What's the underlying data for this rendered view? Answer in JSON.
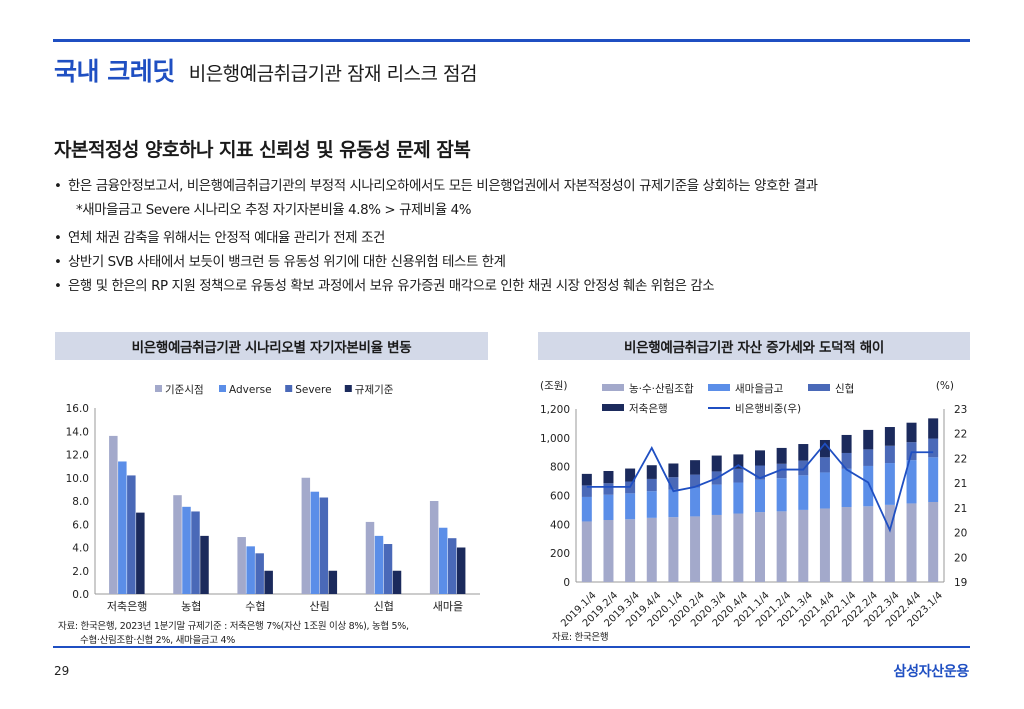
{
  "header": {
    "section": "국내 크레딧",
    "title": "비은행예금취급기관 잠재 리스크 점검"
  },
  "subtitle": "자본적정성 양호하나 지표 신뢰성 및 유동성 문제 잠복",
  "bullets": {
    "b1": "한은 금융안정보고서, 비은행예금취급기관의 부정적 시나리오하에서도 모든 비은행업권에서 자본적정성이 규제기준을 상회하는 양호한 결과",
    "b1_sub": "*새마을금고 Severe 시나리오 추정 자기자본비율 4.8% > 규제비율 4%",
    "b2": "연체 채권 감축을 위해서는 안정적 예대율 관리가 전제 조건",
    "b3": "상반기 SVB 사태에서 보듯이 뱅크런 등 유동성 위기에 대한 신용위험 테스트 한계",
    "b4": "은행 및 한은의 RP 지원 정책으로 유동성 확보 과정에서 보유 유가증권 매각으로 인한 채권 시장 안정성 훼손 위험은 감소",
    "bullet_char": "•"
  },
  "left_panel": {
    "title": "비은행예금취급기관 시나리오별 자기자본비율 변동",
    "source_line1": "자료: 한국은행, 2023년 1분기말 규제기준 : 저축은행 7%(자산 1조원 이상 8%), 농협 5%,",
    "source_line2": "수협·산림조합·신협 2%, 새마을금고 4%"
  },
  "right_panel": {
    "title": "비은행예금취급기관 자산 증가세와 도덕적 해이",
    "source": "자료: 한국은행"
  },
  "footer": {
    "page": "29",
    "brand": "삼성자산운용"
  },
  "chart_data": [
    {
      "type": "bar",
      "categories": [
        "저축은행",
        "농협",
        "수협",
        "산림",
        "신협",
        "새마을"
      ],
      "series": [
        {
          "name": "기준시점",
          "color": "#a3a9cb",
          "values": [
            13.6,
            8.5,
            4.9,
            10.0,
            6.2,
            8.0
          ]
        },
        {
          "name": "Adverse",
          "color": "#5b8ee8",
          "values": [
            11.4,
            7.5,
            4.1,
            8.8,
            5.0,
            5.7
          ]
        },
        {
          "name": "Severe",
          "color": "#4a69b8",
          "values": [
            10.2,
            7.1,
            3.5,
            8.3,
            4.3,
            4.8
          ]
        },
        {
          "name": "규제기준",
          "color": "#1b2a5c",
          "values": [
            7.0,
            5.0,
            2.0,
            2.0,
            2.0,
            4.0
          ]
        }
      ],
      "ylim": [
        0,
        16
      ],
      "yticks": [
        "0.0",
        "2.0",
        "4.0",
        "6.0",
        "8.0",
        "10.0",
        "12.0",
        "14.0",
        "16.0"
      ],
      "legend": "top"
    },
    {
      "type": "bar",
      "stacked": true,
      "categories": [
        "2019.1/4",
        "2019.2/4",
        "2019.3/4",
        "2019.4/4",
        "2020.1/4",
        "2020.2/4",
        "2020.3/4",
        "2020.4/4",
        "2021.1/4",
        "2021.2/4",
        "2021.3/4",
        "2021.4/4",
        "2022.1/4",
        "2022.2/4",
        "2022.3/4",
        "2022.4/4",
        "2023.1/4"
      ],
      "ylabel_left": "(조원)",
      "ylabel_right": "(%)",
      "ylim_left": [
        0,
        1200
      ],
      "yticks_left": [
        "0",
        "200",
        "400",
        "600",
        "800",
        "1,000",
        "1,200"
      ],
      "ylim_right": [
        19,
        23
      ],
      "yticks_right": [
        "19",
        "20",
        "20",
        "21",
        "21",
        "22",
        "22",
        "23"
      ],
      "series": [
        {
          "name": "농·수·산림조합",
          "color": "#a3a9cb",
          "values": [
            420,
            430,
            435,
            445,
            450,
            455,
            465,
            475,
            485,
            490,
            500,
            510,
            520,
            525,
            535,
            545,
            555
          ]
        },
        {
          "name": "새마을금고",
          "color": "#5b8ee8",
          "values": [
            170,
            175,
            180,
            185,
            190,
            200,
            210,
            215,
            225,
            230,
            240,
            250,
            265,
            280,
            290,
            300,
            310
          ]
        },
        {
          "name": "신협",
          "color": "#4a69b8",
          "values": [
            80,
            80,
            82,
            85,
            87,
            90,
            92,
            95,
            98,
            100,
            102,
            105,
            110,
            115,
            120,
            125,
            130
          ]
        },
        {
          "name": "저축은행",
          "color": "#1b2a5c",
          "values": [
            80,
            85,
            90,
            95,
            95,
            100,
            110,
            100,
            105,
            110,
            115,
            120,
            125,
            135,
            130,
            135,
            140
          ]
        },
        {
          "name": "비은행비중(우)",
          "type": "line",
          "color": "#1f4fc2",
          "axis": "right",
          "values": [
            21.2,
            21.2,
            21.2,
            22.1,
            21.1,
            21.2,
            21.4,
            21.7,
            21.4,
            21.6,
            21.6,
            22.2,
            21.6,
            21.3,
            20.2,
            22.0,
            22.0
          ]
        }
      ],
      "legend": "top"
    }
  ]
}
